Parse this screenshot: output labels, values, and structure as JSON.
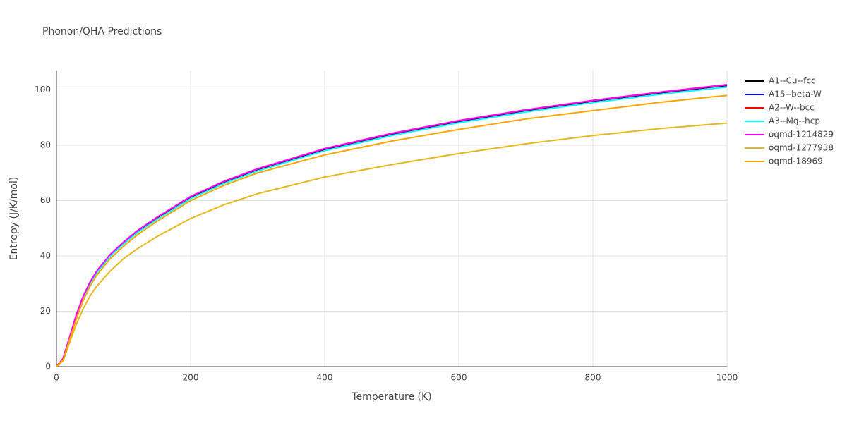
{
  "chart_data": {
    "type": "line",
    "title": "Phonon/QHA Predictions",
    "x_label": "Temperature (K)",
    "y_label": "Entropy (J/K/mol)",
    "x": [
      0,
      10,
      20,
      30,
      40,
      50,
      60,
      80,
      100,
      120,
      150,
      200,
      250,
      300,
      400,
      500,
      600,
      700,
      800,
      900,
      1000
    ],
    "xlim": [
      0,
      1000
    ],
    "xticks": [
      0,
      200,
      400,
      600,
      800,
      1000
    ],
    "ylim": [
      0,
      107
    ],
    "yticks": [
      0,
      20,
      40,
      60,
      80,
      100
    ],
    "grid": true,
    "legend": "right",
    "series": [
      {
        "name": "A1--Cu--fcc",
        "color": "#000000",
        "values": [
          0,
          2.8,
          10.8,
          18.8,
          25.3,
          30.3,
          34.3,
          40.3,
          44.8,
          48.8,
          53.7,
          61.2,
          66.7,
          71.2,
          78.5,
          84.0,
          88.6,
          92.5,
          95.9,
          98.9,
          101.6
        ]
      },
      {
        "name": "A15--beta-W",
        "color": "#0000ff",
        "values": [
          0,
          2.9,
          10.9,
          18.9,
          25.4,
          30.4,
          34.4,
          40.4,
          44.9,
          48.9,
          53.8,
          61.3,
          66.8,
          71.3,
          78.6,
          84.1,
          88.7,
          92.6,
          96.0,
          99.0,
          101.7
        ]
      },
      {
        "name": "A2--W--bcc",
        "color": "#ff0000",
        "values": [
          0,
          3.0,
          11.0,
          19.0,
          25.5,
          30.5,
          34.5,
          40.5,
          45.0,
          49.0,
          53.9,
          61.4,
          66.9,
          71.4,
          78.7,
          84.2,
          88.8,
          92.7,
          96.1,
          99.1,
          101.8
        ]
      },
      {
        "name": "A3--Mg--hcp",
        "color": "#00ffff",
        "values": [
          0,
          2.7,
          10.6,
          18.5,
          25.0,
          30.0,
          33.9,
          39.9,
          44.3,
          48.3,
          53.2,
          60.7,
          66.2,
          70.7,
          78.0,
          83.5,
          88.1,
          92.0,
          95.4,
          98.4,
          101.0
        ]
      },
      {
        "name": "oqmd-1214829",
        "color": "#ff00ff",
        "values": [
          0,
          3.0,
          11.0,
          19.0,
          25.5,
          30.5,
          34.5,
          40.5,
          45.0,
          49.0,
          54.0,
          61.5,
          67.0,
          71.5,
          78.8,
          84.3,
          88.9,
          92.8,
          96.2,
          99.2,
          101.9
        ]
      },
      {
        "name": "oqmd-1277938",
        "color": "#e6b820",
        "values": [
          0,
          2.0,
          9.0,
          15.5,
          21.0,
          25.5,
          29.0,
          34.5,
          39.0,
          42.5,
          47.0,
          53.5,
          58.5,
          62.5,
          68.5,
          73.0,
          77.0,
          80.5,
          83.5,
          86.0,
          88.0
        ]
      },
      {
        "name": "oqmd-18969",
        "color": "#ffa500",
        "values": [
          0,
          2.5,
          10.0,
          17.5,
          24.0,
          29.0,
          33.0,
          39.0,
          43.5,
          47.5,
          52.5,
          60.0,
          65.5,
          70.0,
          76.5,
          81.5,
          85.7,
          89.5,
          92.5,
          95.5,
          98.0
        ]
      }
    ]
  }
}
